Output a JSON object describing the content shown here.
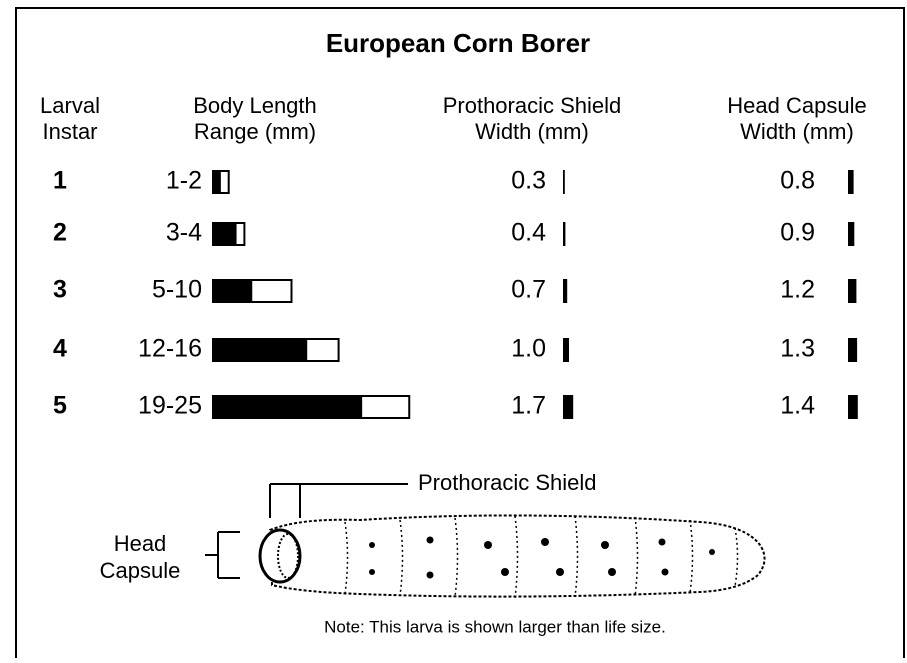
{
  "title": "European Corn Borer",
  "headers": [
    [
      "Larval",
      "Instar"
    ],
    [
      "Body Length",
      "Range (mm)"
    ],
    [
      "Prothoracic Shield",
      "Width (mm)"
    ],
    [
      "Head Capsule",
      "Width (mm)"
    ]
  ],
  "rows": [
    {
      "instar": "1",
      "range": "1-2",
      "shield": "0.3",
      "head": "0.8"
    },
    {
      "instar": "2",
      "range": "3-4",
      "shield": "0.4",
      "head": "0.9"
    },
    {
      "instar": "3",
      "range": "5-10",
      "shield": "0.7",
      "head": "1.2"
    },
    {
      "instar": "4",
      "range": "12-16",
      "shield": "1.0",
      "head": "1.3"
    },
    {
      "instar": "5",
      "range": "19-25",
      "shield": "1.7",
      "head": "1.4"
    }
  ],
  "diagram": {
    "shield_label": "Prothoracic Shield",
    "head_label": [
      "Head",
      "Capsule"
    ]
  },
  "note": "Note: This larva is shown larger than life size."
}
